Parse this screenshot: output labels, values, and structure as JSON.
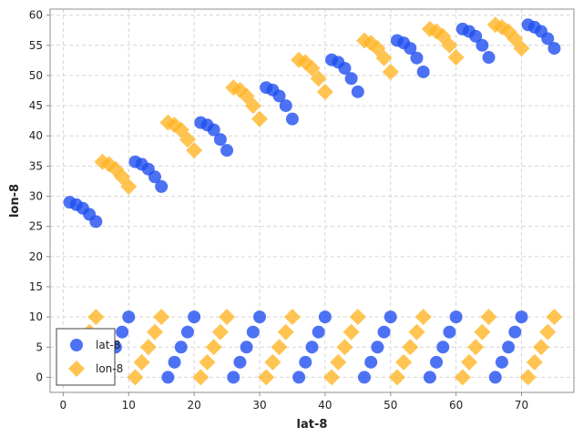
{
  "chart_data": {
    "type": "scatter",
    "title": "",
    "xlabel": "lat-8",
    "ylabel": "lon-8",
    "xlim": [
      -2,
      78
    ],
    "ylim": [
      -2.5,
      61
    ],
    "xticks": [
      0,
      10,
      20,
      30,
      40,
      50,
      60,
      70
    ],
    "yticks": [
      0,
      5,
      10,
      15,
      20,
      25,
      30,
      35,
      40,
      45,
      50,
      55,
      60
    ],
    "grid": true,
    "legend_position": "bottom-left",
    "series": [
      {
        "name": "lat-8",
        "marker": "circle",
        "color": "#1f4ff0",
        "points": [
          [
            1,
            29.0
          ],
          [
            2,
            28.6
          ],
          [
            3,
            28.0
          ],
          [
            4,
            27.0
          ],
          [
            5,
            25.8
          ],
          [
            6,
            0.0
          ],
          [
            7,
            2.5
          ],
          [
            8,
            5.0
          ],
          [
            9,
            7.5
          ],
          [
            10,
            10.0
          ],
          [
            11,
            35.7
          ],
          [
            12,
            35.3
          ],
          [
            13,
            34.5
          ],
          [
            14,
            33.2
          ],
          [
            15,
            31.6
          ],
          [
            16,
            0.0
          ],
          [
            17,
            2.5
          ],
          [
            18,
            5.0
          ],
          [
            19,
            7.5
          ],
          [
            20,
            10.0
          ],
          [
            21,
            42.2
          ],
          [
            22,
            41.8
          ],
          [
            23,
            41.0
          ],
          [
            24,
            39.4
          ],
          [
            25,
            37.6
          ],
          [
            26,
            0.0
          ],
          [
            27,
            2.5
          ],
          [
            28,
            5.0
          ],
          [
            29,
            7.5
          ],
          [
            30,
            10.0
          ],
          [
            31,
            48.0
          ],
          [
            32,
            47.6
          ],
          [
            33,
            46.6
          ],
          [
            34,
            45.0
          ],
          [
            35,
            42.8
          ],
          [
            36,
            0.0
          ],
          [
            37,
            2.5
          ],
          [
            38,
            5.0
          ],
          [
            39,
            7.5
          ],
          [
            40,
            10.0
          ],
          [
            41,
            52.6
          ],
          [
            42,
            52.2
          ],
          [
            43,
            51.2
          ],
          [
            44,
            49.5
          ],
          [
            45,
            47.3
          ],
          [
            46,
            0.0
          ],
          [
            47,
            2.5
          ],
          [
            48,
            5.0
          ],
          [
            49,
            7.5
          ],
          [
            50,
            10.0
          ],
          [
            51,
            55.8
          ],
          [
            52,
            55.4
          ],
          [
            53,
            54.5
          ],
          [
            54,
            52.9
          ],
          [
            55,
            50.6
          ],
          [
            56,
            0.0
          ],
          [
            57,
            2.5
          ],
          [
            58,
            5.0
          ],
          [
            59,
            7.5
          ],
          [
            60,
            10.0
          ],
          [
            61,
            57.7
          ],
          [
            62,
            57.3
          ],
          [
            63,
            56.5
          ],
          [
            64,
            55.0
          ],
          [
            65,
            53.0
          ],
          [
            66,
            0.0
          ],
          [
            67,
            2.5
          ],
          [
            68,
            5.0
          ],
          [
            69,
            7.5
          ],
          [
            70,
            10.0
          ],
          [
            71,
            58.4
          ],
          [
            72,
            58.0
          ],
          [
            73,
            57.3
          ],
          [
            74,
            56.1
          ],
          [
            75,
            54.5
          ]
        ]
      },
      {
        "name": "lon-8",
        "marker": "diamond",
        "color": "#ffb526",
        "points": [
          [
            1,
            0.0
          ],
          [
            2,
            2.5
          ],
          [
            3,
            5.0
          ],
          [
            4,
            7.5
          ],
          [
            5,
            10.0
          ],
          [
            6,
            35.7
          ],
          [
            7,
            35.3
          ],
          [
            8,
            34.5
          ],
          [
            9,
            33.2
          ],
          [
            10,
            31.6
          ],
          [
            11,
            0.0
          ],
          [
            12,
            2.5
          ],
          [
            13,
            5.0
          ],
          [
            14,
            7.5
          ],
          [
            15,
            10.0
          ],
          [
            16,
            42.2
          ],
          [
            17,
            41.8
          ],
          [
            18,
            41.0
          ],
          [
            19,
            39.4
          ],
          [
            20,
            37.6
          ],
          [
            21,
            0.0
          ],
          [
            22,
            2.5
          ],
          [
            23,
            5.0
          ],
          [
            24,
            7.5
          ],
          [
            25,
            10.0
          ],
          [
            26,
            48.0
          ],
          [
            27,
            47.6
          ],
          [
            28,
            46.6
          ],
          [
            29,
            45.0
          ],
          [
            30,
            42.8
          ],
          [
            31,
            0.0
          ],
          [
            32,
            2.5
          ],
          [
            33,
            5.0
          ],
          [
            34,
            7.5
          ],
          [
            35,
            10.0
          ],
          [
            36,
            52.6
          ],
          [
            37,
            52.2
          ],
          [
            38,
            51.2
          ],
          [
            39,
            49.5
          ],
          [
            40,
            47.3
          ],
          [
            41,
            0.0
          ],
          [
            42,
            2.5
          ],
          [
            43,
            5.0
          ],
          [
            44,
            7.5
          ],
          [
            45,
            10.0
          ],
          [
            46,
            55.8
          ],
          [
            47,
            55.4
          ],
          [
            48,
            54.5
          ],
          [
            49,
            52.9
          ],
          [
            50,
            50.6
          ],
          [
            51,
            0.0
          ],
          [
            52,
            2.5
          ],
          [
            53,
            5.0
          ],
          [
            54,
            7.5
          ],
          [
            55,
            10.0
          ],
          [
            56,
            57.7
          ],
          [
            57,
            57.3
          ],
          [
            58,
            56.5
          ],
          [
            59,
            55.0
          ],
          [
            60,
            53.0
          ],
          [
            61,
            0.0
          ],
          [
            62,
            2.5
          ],
          [
            63,
            5.0
          ],
          [
            64,
            7.5
          ],
          [
            65,
            10.0
          ],
          [
            66,
            58.4
          ],
          [
            67,
            58.0
          ],
          [
            68,
            57.3
          ],
          [
            69,
            56.1
          ],
          [
            70,
            54.5
          ],
          [
            71,
            0.0
          ],
          [
            72,
            2.5
          ],
          [
            73,
            5.0
          ],
          [
            74,
            7.5
          ],
          [
            75,
            10.0
          ]
        ]
      }
    ]
  }
}
